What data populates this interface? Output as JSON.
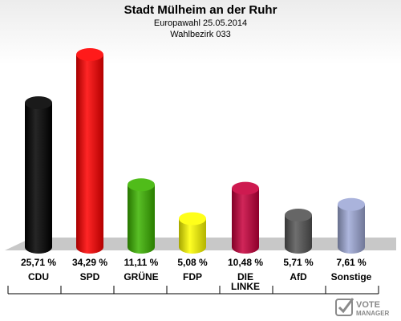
{
  "header": {
    "title": "Stadt Mülheim an der Ruhr",
    "subtitle": "Europawahl 25.05.2014",
    "district": "Wahlbezirk 033"
  },
  "chart_data": {
    "type": "bar",
    "categories": [
      "CDU",
      "SPD",
      "GRÜNE",
      "FDP",
      "DIE LINKE",
      "AfD",
      "Sonstige"
    ],
    "category_lines": [
      [
        "CDU"
      ],
      [
        "SPD"
      ],
      [
        "GRÜNE"
      ],
      [
        "FDP"
      ],
      [
        "DIE",
        "LINKE"
      ],
      [
        "AfD"
      ],
      [
        "Sonstige"
      ]
    ],
    "values": [
      25.71,
      34.29,
      11.11,
      5.08,
      10.48,
      5.71,
      7.61
    ],
    "value_labels": [
      "25,71 %",
      "34,29 %",
      "11,11 %",
      "5,08 %",
      "10,48 %",
      "5,71 %",
      "7,61 %"
    ],
    "colors": [
      "#000000",
      "#ff0000",
      "#3cb400",
      "#ffff00",
      "#c8003c",
      "#555555",
      "#a0aad8"
    ],
    "ylim": [
      0,
      34.29
    ],
    "grid": false,
    "legend": "none"
  },
  "logo": {
    "line1": "VOTE",
    "line2": "MANAGER"
  }
}
